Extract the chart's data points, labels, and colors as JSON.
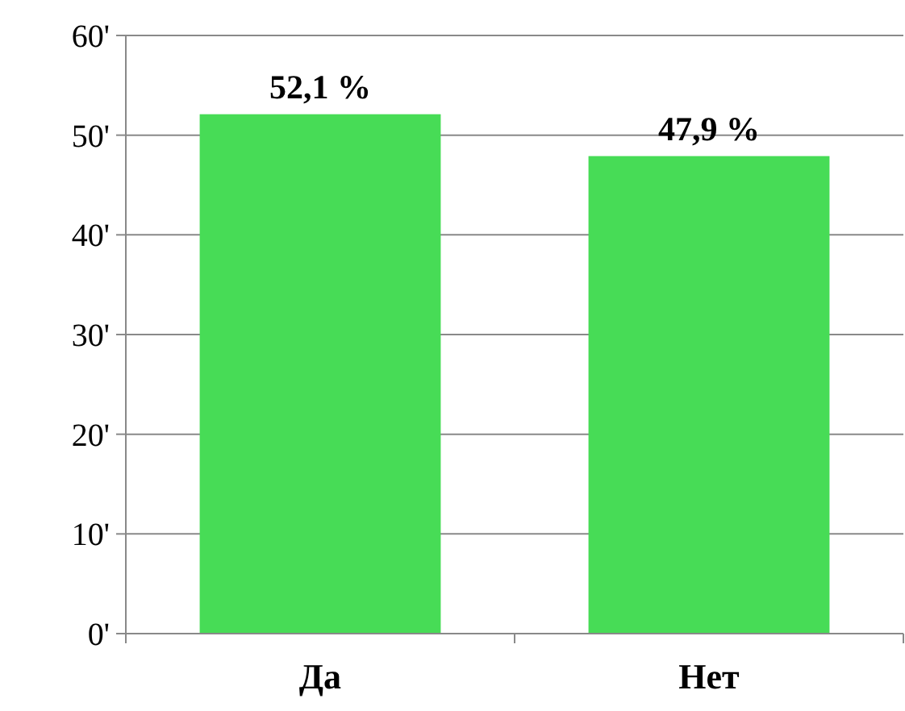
{
  "chart_data": {
    "type": "bar",
    "categories": [
      "Да",
      "Нет"
    ],
    "values": [
      52.1,
      47.9
    ],
    "color": "#47dc56",
    "value_labels": [
      "52,1 %",
      "47,9 %"
    ],
    "ylim": [
      0,
      60
    ],
    "yticks": [
      {
        "value": 0,
        "label": "0'"
      },
      {
        "value": 10,
        "label": "10'"
      },
      {
        "value": 20,
        "label": "20'"
      },
      {
        "value": 30,
        "label": "30'"
      },
      {
        "value": 40,
        "label": "40'"
      },
      {
        "value": 50,
        "label": "50'"
      },
      {
        "value": 60,
        "label": "60'"
      }
    ],
    "grid": "y"
  }
}
